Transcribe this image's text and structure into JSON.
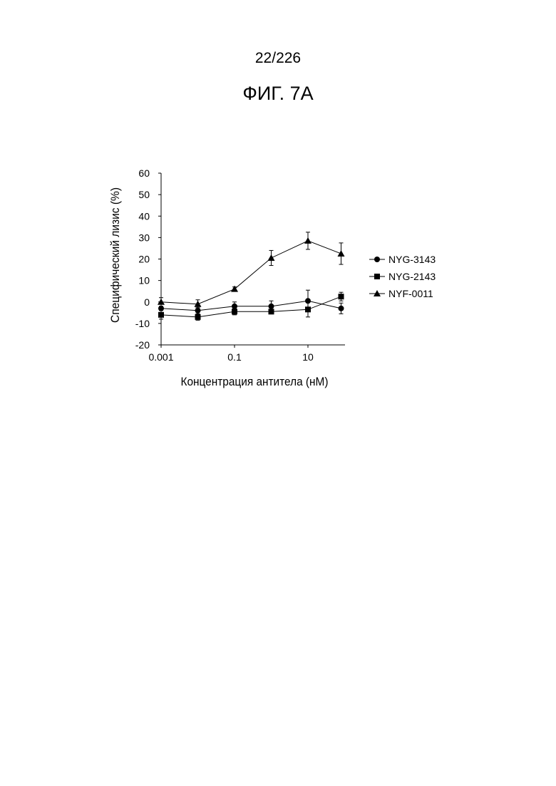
{
  "page": {
    "page_number": "22/226",
    "figure_label": "ФИГ. 7А"
  },
  "chart_data": {
    "type": "line",
    "xlabel": "Концентрация антитела (нМ)",
    "ylabel": "Специфический лизис (%)",
    "xscale": "log",
    "xlim": [
      0.001,
      80
    ],
    "ylim": [
      -20,
      60
    ],
    "xticks": [
      0.001,
      0.1,
      10
    ],
    "xtick_labels": [
      "0.001",
      "0.1",
      "10"
    ],
    "yticks": [
      -20,
      -10,
      0,
      10,
      20,
      30,
      40,
      50,
      60
    ],
    "ytick_labels": [
      "-20",
      "-10",
      "0",
      "10",
      "20",
      "30",
      "40",
      "50",
      "60"
    ],
    "grid": false,
    "legend_position": "right",
    "x": [
      0.001,
      0.01,
      0.1,
      1,
      10,
      80
    ],
    "series": [
      {
        "name": "NYG-3143",
        "marker": "circle",
        "values": [
          -3,
          -4,
          -2,
          -2,
          0.5,
          -3
        ],
        "errors": [
          2,
          1.5,
          2,
          2.5,
          5,
          2.5
        ]
      },
      {
        "name": "NYG-2143",
        "marker": "square",
        "values": [
          -6,
          -7,
          -4.5,
          -4.5,
          -3.5,
          2.5
        ],
        "errors": [
          2,
          1.5,
          1.5,
          1,
          3.5,
          2
        ]
      },
      {
        "name": "NYF-0011",
        "marker": "triangle",
        "values": [
          0,
          -1,
          6,
          20.5,
          28.5,
          22.5
        ],
        "errors": [
          2,
          2,
          1,
          3.5,
          4,
          5
        ]
      }
    ]
  }
}
